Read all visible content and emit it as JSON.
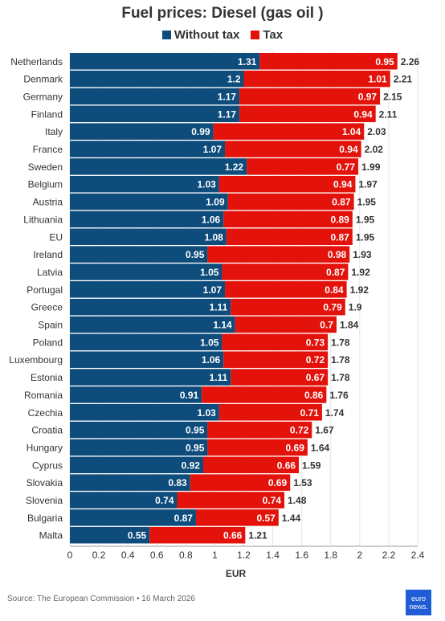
{
  "title": "Fuel prices: Diesel (gas oil )",
  "source": "Source: The European Commission • 16 March 2026",
  "logo": {
    "line1": "euro",
    "line2": "news."
  },
  "colors": {
    "without_tax": "#0e4c7c",
    "tax": "#e3120b",
    "text": "#333333"
  },
  "chart_data": {
    "type": "bar",
    "orientation": "horizontal",
    "stacked": true,
    "title": "Fuel prices: Diesel (gas oil )",
    "xlabel": "EUR",
    "xlim": [
      0,
      2.4
    ],
    "xticks": [
      "0",
      "0.2",
      "0.4",
      "0.6",
      "0.8",
      "1",
      "1.2",
      "1.4",
      "1.6",
      "1.8",
      "2",
      "2.2",
      "2.4"
    ],
    "legend_position": "top-center",
    "categories": [
      "Netherlands",
      "Denmark",
      "Germany",
      "Finland",
      "Italy",
      "France",
      "Sweden",
      "Belgium",
      "Austria",
      "Lithuania",
      "EU",
      "Ireland",
      "Latvia",
      "Portugal",
      "Greece",
      "Spain",
      "Poland",
      "Luxembourg",
      "Estonia",
      "Romania",
      "Czechia",
      "Croatia",
      "Hungary",
      "Cyprus",
      "Slovakia",
      "Slovenia",
      "Bulgaria",
      "Malta"
    ],
    "series": [
      {
        "name": "Without tax",
        "values": [
          1.31,
          1.2,
          1.17,
          1.17,
          0.99,
          1.07,
          1.22,
          1.03,
          1.09,
          1.06,
          1.08,
          0.95,
          1.05,
          1.07,
          1.11,
          1.14,
          1.05,
          1.06,
          1.11,
          0.91,
          1.03,
          0.95,
          0.95,
          0.92,
          0.83,
          0.74,
          0.87,
          0.55
        ]
      },
      {
        "name": "Tax",
        "values": [
          0.95,
          1.01,
          0.97,
          0.94,
          1.04,
          0.94,
          0.77,
          0.94,
          0.87,
          0.89,
          0.87,
          0.98,
          0.87,
          0.84,
          0.79,
          0.7,
          0.73,
          0.72,
          0.67,
          0.86,
          0.71,
          0.72,
          0.69,
          0.66,
          0.69,
          0.74,
          0.57,
          0.66
        ]
      }
    ],
    "totals": [
      "2.26",
      "2.21",
      "2.15",
      "2.11",
      "2.03",
      "2.02",
      "1.99",
      "1.97",
      "1.95",
      "1.95",
      "1.95",
      "1.93",
      "1.92",
      "1.92",
      "1.9",
      "1.84",
      "1.78",
      "1.78",
      "1.78",
      "1.76",
      "1.74",
      "1.67",
      "1.64",
      "1.59",
      "1.53",
      "1.48",
      "1.44",
      "1.21"
    ]
  }
}
